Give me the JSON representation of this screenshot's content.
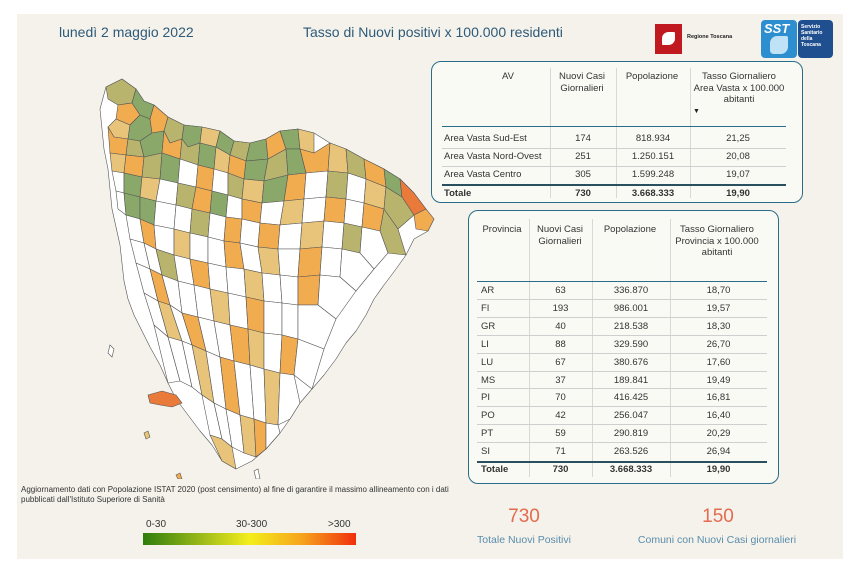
{
  "header": {
    "date": "lunedì 2 maggio 2022",
    "title": "Tasso di Nuovi positivi x 100.000 residenti"
  },
  "logos": {
    "regione": "Regione Toscana",
    "sst_short": "SST",
    "sst_full": "Servizio\nSanitario\ndella\nToscana"
  },
  "colors": {
    "panel_bg": "#f4f2ea",
    "accent": "#2e5a7a",
    "kpi_value": "#e56b4f",
    "kpi_label": "#5a8dad"
  },
  "av_table": {
    "headers": [
      "AV",
      "Nuovi Casi Giornalieri",
      "Popolazione",
      "Tasso Giornaliero Area Vasta x 100.000 abitanti"
    ],
    "sort_indicator": "▼",
    "rows": [
      [
        "Area Vasta Sud-Est",
        "174",
        "818.934",
        "21,25"
      ],
      [
        "Area Vasta Nord-Ovest",
        "251",
        "1.250.151",
        "20,08"
      ],
      [
        "Area Vasta Centro",
        "305",
        "1.599.248",
        "19,07"
      ]
    ],
    "total": [
      "Totale",
      "730",
      "3.668.333",
      "19,90"
    ]
  },
  "prov_table": {
    "headers": [
      "Provincia",
      "Nuovi Casi Giornalieri",
      "Popolazione",
      "Tasso Giornaliero Provincia x 100.000 abitanti"
    ],
    "rows": [
      [
        "AR",
        "63",
        "336.870",
        "18,70"
      ],
      [
        "FI",
        "193",
        "986.001",
        "19,57"
      ],
      [
        "GR",
        "40",
        "218.538",
        "18,30"
      ],
      [
        "LI",
        "88",
        "329.590",
        "26,70"
      ],
      [
        "LU",
        "67",
        "380.676",
        "17,60"
      ],
      [
        "MS",
        "37",
        "189.841",
        "19,49"
      ],
      [
        "PI",
        "70",
        "416.425",
        "16,81"
      ],
      [
        "PO",
        "42",
        "256.047",
        "16,40"
      ],
      [
        "PT",
        "59",
        "290.819",
        "20,29"
      ],
      [
        "SI",
        "71",
        "263.526",
        "26,94"
      ]
    ],
    "total": [
      "Totale",
      "730",
      "3.668.333",
      "19,90"
    ]
  },
  "footnote": "Aggiornamento dati con Popolazione ISTAT 2020 (post censimento) al fine di garantire il massimo allineamento con i dati pubblicati dall'Istituto Superiore di Sanità",
  "legend": {
    "labels": [
      "0-30",
      "30-300",
      ">300"
    ],
    "gradient": [
      "#2e7d0c",
      "#a6c01a",
      "#f4ee1a",
      "#f6a21e",
      "#f0300c"
    ]
  },
  "kpis": {
    "total_positive_value": "730",
    "total_positive_label": "Totale Nuovi Positivi",
    "municipalities_value": "150",
    "municipalities_label": "Comuni con Nuovi Casi giornalieri"
  },
  "map": {
    "fill_colors": {
      "none": "#ffffff",
      "green": "#8aa86a",
      "olive": "#b8b46e",
      "light": "#e8c47a",
      "orange": "#f2ac50",
      "red": "#ea7a3a"
    }
  }
}
